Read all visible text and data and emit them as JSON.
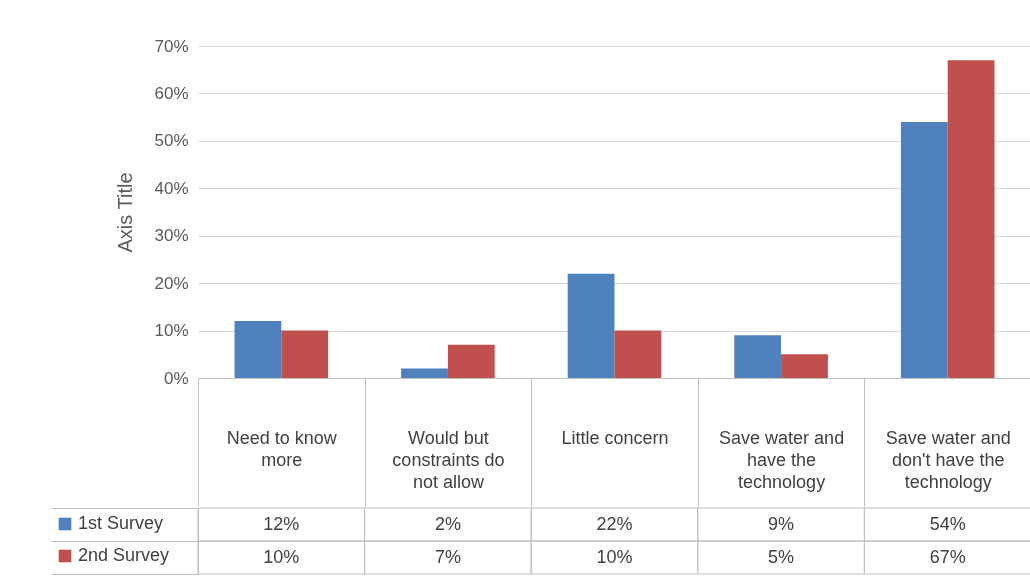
{
  "chart_data": {
    "type": "bar",
    "ylabel": "Axis Title",
    "categories": [
      "Need to know more",
      "Would but constraints do not allow",
      "Little concern",
      "Save water and have the technology",
      "Save water and don't have the technology"
    ],
    "series": [
      {
        "name": "1st Survey",
        "color": "#4f81bd",
        "values": [
          12,
          2,
          22,
          9,
          54
        ],
        "value_labels": [
          "12%",
          "2%",
          "22%",
          "9%",
          "54%"
        ]
      },
      {
        "name": "2nd Survey",
        "color": "#c0504d",
        "values": [
          10,
          7,
          10,
          5,
          67
        ],
        "value_labels": [
          "10%",
          "7%",
          "10%",
          "5%",
          "67%"
        ]
      }
    ],
    "ylim": [
      0,
      70
    ],
    "yticks": [
      {
        "value": 0,
        "label": "0%"
      },
      {
        "value": 10,
        "label": "10%"
      },
      {
        "value": 20,
        "label": "20%"
      },
      {
        "value": 30,
        "label": "30%"
      },
      {
        "value": 40,
        "label": "40%"
      },
      {
        "value": 50,
        "label": "50%"
      },
      {
        "value": 60,
        "label": "60%"
      },
      {
        "value": 70,
        "label": "70%"
      }
    ],
    "grid": "y",
    "legend": "bottom"
  }
}
